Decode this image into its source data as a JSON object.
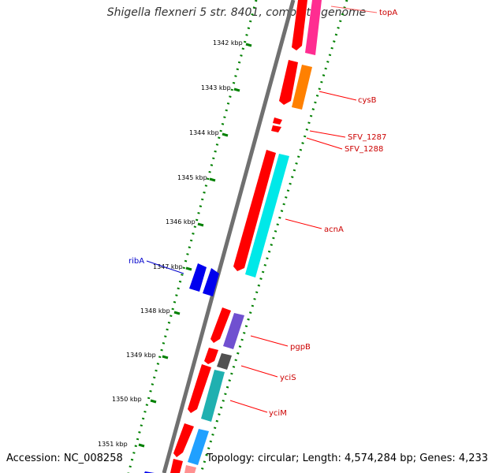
{
  "title": "Shigella flexneri 5 str. 8401, complete genome",
  "accession": "Accession: NC_008258",
  "summary": "Topology: circular; Length: 4,574,284 bp; Genes: 4,233",
  "scale_ticks": [
    {
      "label": "1342 kbp"
    },
    {
      "label": "1343 kbp"
    },
    {
      "label": "1344 kbp"
    },
    {
      "label": "1345 kbp"
    },
    {
      "label": "1346 kbp"
    },
    {
      "label": "1347 kbp"
    },
    {
      "label": "1348 kbp"
    },
    {
      "label": "1349 kbp"
    },
    {
      "label": "1350 kbp"
    },
    {
      "label": "1351 kbp"
    }
  ],
  "gene_labels": [
    {
      "text": "topA",
      "color": "#cc0000"
    },
    {
      "text": "cysB",
      "color": "#cc0000"
    },
    {
      "text": "SFV_1287",
      "color": "#cc0000"
    },
    {
      "text": "SFV_1288",
      "color": "#cc0000"
    },
    {
      "text": "acnA",
      "color": "#cc0000"
    },
    {
      "text": "ribA",
      "color": "#0000cc"
    },
    {
      "text": "pgpB",
      "color": "#cc0000"
    },
    {
      "text": "yciS",
      "color": "#cc0000"
    },
    {
      "text": "yciM",
      "color": "#cc0000"
    }
  ],
  "colors": {
    "backbone": "#808080",
    "ruler": "#008000",
    "forward_cds": "#ff0000",
    "reverse_cds": "#0000ff"
  }
}
